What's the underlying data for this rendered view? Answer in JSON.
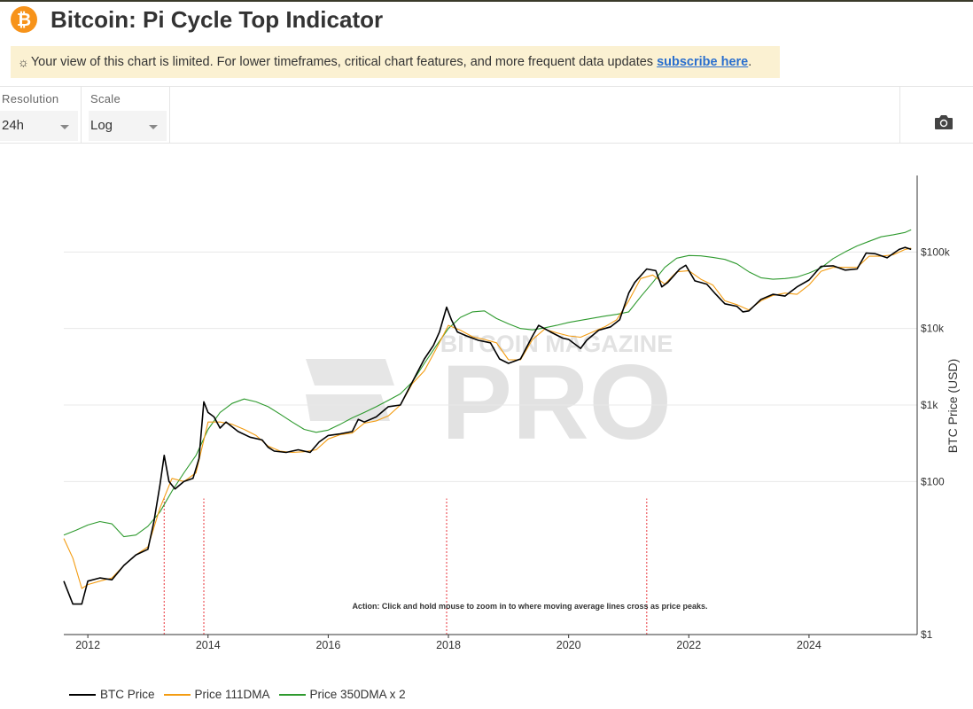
{
  "header": {
    "title": "Bitcoin: Pi Cycle Top Indicator",
    "logo_glyph": "₿"
  },
  "notice": {
    "text": "Your view of this chart is limited. For lower timeframes, critical chart features, and more frequent data updates ",
    "link": "subscribe here",
    "end": "."
  },
  "controls": {
    "resolution": {
      "label": "Resolution",
      "value": "24h"
    },
    "scale": {
      "label": "Scale",
      "value": "Log"
    }
  },
  "colors": {
    "btc": "#000000",
    "dma111": "#f39c12",
    "dma350x2": "#2e9a2e",
    "crossover": "#e8343a",
    "grid": "#e8e8e8"
  },
  "chart_data": {
    "type": "line",
    "title": "Bitcoin: Pi Cycle Top Indicator",
    "ylabel": "BTC Price (USD)",
    "yscale": "log",
    "ylim": [
      1,
      1000000
    ],
    "y_ticks": [
      {
        "value": 1,
        "label": "$1"
      },
      {
        "value": 100,
        "label": "$100"
      },
      {
        "value": 1000,
        "label": "$1k"
      },
      {
        "value": 10000,
        "label": "$10k"
      },
      {
        "value": 100000,
        "label": "$100k"
      }
    ],
    "xlim": [
      2011.6,
      2025.8
    ],
    "x_ticks": [
      {
        "value": 2012,
        "label": "2012"
      },
      {
        "value": 2014,
        "label": "2014"
      },
      {
        "value": 2016,
        "label": "2016"
      },
      {
        "value": 2018,
        "label": "2018"
      },
      {
        "value": 2020,
        "label": "2020"
      },
      {
        "value": 2022,
        "label": "2022"
      },
      {
        "value": 2024,
        "label": "2024"
      }
    ],
    "crossovers": [
      2013.27,
      2013.93,
      2017.97,
      2021.3
    ],
    "annotation": "Action: Click and hold mouse to zoom in to where moving average lines cross as price peaks.",
    "watermark": {
      "top": "BITCOIN MAGAZINE",
      "main": "PRO"
    },
    "series": [
      {
        "name": "BTC Price",
        "key": "btc",
        "x": [
          2011.6,
          2011.75,
          2011.9,
          2012.0,
          2012.2,
          2012.4,
          2012.6,
          2012.8,
          2013.0,
          2013.1,
          2013.2,
          2013.27,
          2013.35,
          2013.45,
          2013.6,
          2013.75,
          2013.85,
          2013.93,
          2014.0,
          2014.1,
          2014.2,
          2014.3,
          2014.5,
          2014.7,
          2014.9,
          2015.0,
          2015.1,
          2015.3,
          2015.5,
          2015.7,
          2015.85,
          2016.0,
          2016.2,
          2016.4,
          2016.5,
          2016.6,
          2016.8,
          2017.0,
          2017.2,
          2017.4,
          2017.6,
          2017.75,
          2017.85,
          2017.97,
          2018.05,
          2018.15,
          2018.3,
          2018.5,
          2018.7,
          2018.85,
          2019.0,
          2019.2,
          2019.4,
          2019.5,
          2019.7,
          2019.9,
          2020.0,
          2020.2,
          2020.3,
          2020.5,
          2020.7,
          2020.85,
          2021.0,
          2021.1,
          2021.3,
          2021.45,
          2021.55,
          2021.65,
          2021.85,
          2021.95,
          2022.1,
          2022.3,
          2022.45,
          2022.6,
          2022.8,
          2022.9,
          2023.0,
          2023.2,
          2023.4,
          2023.6,
          2023.8,
          2024.0,
          2024.2,
          2024.4,
          2024.6,
          2024.8,
          2024.95,
          2025.1,
          2025.3,
          2025.5,
          2025.6,
          2025.7
        ],
        "y": [
          5,
          2.5,
          2.5,
          5,
          5.5,
          5.2,
          8,
          11,
          13,
          30,
          90,
          220,
          100,
          80,
          100,
          110,
          200,
          1100,
          800,
          700,
          500,
          600,
          450,
          380,
          350,
          280,
          250,
          240,
          260,
          240,
          330,
          400,
          420,
          450,
          650,
          600,
          700,
          950,
          1000,
          2000,
          4000,
          6000,
          9000,
          19000,
          13000,
          9000,
          8000,
          7000,
          6500,
          4000,
          3500,
          4000,
          8000,
          11000,
          9000,
          7500,
          7200,
          5500,
          7000,
          9500,
          10500,
          13000,
          29000,
          40000,
          60000,
          57000,
          35000,
          40000,
          60000,
          67000,
          42000,
          38000,
          28000,
          21000,
          19500,
          16500,
          17000,
          24000,
          28000,
          26500,
          35000,
          43000,
          65000,
          66000,
          58000,
          60000,
          97000,
          95000,
          84000,
          108000,
          115000,
          108000
        ]
      },
      {
        "name": "Price 111DMA",
        "key": "dma111",
        "x": [
          2011.6,
          2011.75,
          2011.9,
          2012.0,
          2012.2,
          2012.4,
          2012.6,
          2012.8,
          2013.0,
          2013.2,
          2013.4,
          2013.6,
          2013.8,
          2014.0,
          2014.2,
          2014.4,
          2014.6,
          2014.8,
          2015.0,
          2015.2,
          2015.4,
          2015.6,
          2015.8,
          2016.0,
          2016.2,
          2016.4,
          2016.6,
          2016.8,
          2017.0,
          2017.2,
          2017.4,
          2017.6,
          2017.8,
          2018.0,
          2018.2,
          2018.4,
          2018.6,
          2018.8,
          2019.0,
          2019.2,
          2019.4,
          2019.6,
          2019.8,
          2020.0,
          2020.2,
          2020.4,
          2020.6,
          2020.8,
          2021.0,
          2021.2,
          2021.4,
          2021.6,
          2021.8,
          2022.0,
          2022.2,
          2022.4,
          2022.6,
          2022.8,
          2023.0,
          2023.2,
          2023.4,
          2023.6,
          2023.8,
          2024.0,
          2024.2,
          2024.4,
          2024.6,
          2024.8,
          2025.0,
          2025.2,
          2025.4,
          2025.6,
          2025.7
        ],
        "y": [
          18,
          10,
          4,
          4.5,
          5,
          5.5,
          8,
          11,
          14,
          45,
          110,
          100,
          130,
          600,
          600,
          560,
          480,
          400,
          290,
          250,
          240,
          245,
          260,
          360,
          410,
          430,
          580,
          620,
          720,
          1000,
          1900,
          2800,
          5500,
          11000,
          9500,
          7800,
          7200,
          6500,
          3900,
          3900,
          7200,
          9800,
          8800,
          8000,
          7700,
          9000,
          10500,
          13000,
          23000,
          45000,
          50000,
          38000,
          55000,
          57000,
          44000,
          37000,
          23000,
          20500,
          17500,
          23000,
          27000,
          29000,
          28000,
          37000,
          56000,
          63000,
          63000,
          63000,
          88000,
          88000,
          92000,
          108000,
          112000
        ]
      },
      {
        "name": "Price 350DMA x 2",
        "key": "dma350x2",
        "x": [
          2011.6,
          2011.8,
          2012.0,
          2012.2,
          2012.4,
          2012.6,
          2012.8,
          2013.0,
          2013.2,
          2013.4,
          2013.6,
          2013.8,
          2014.0,
          2014.2,
          2014.4,
          2014.6,
          2014.8,
          2015.0,
          2015.2,
          2015.4,
          2015.6,
          2015.8,
          2016.0,
          2016.2,
          2016.4,
          2016.6,
          2016.8,
          2017.0,
          2017.2,
          2017.4,
          2017.6,
          2017.8,
          2018.0,
          2018.2,
          2018.4,
          2018.6,
          2018.8,
          2019.0,
          2019.2,
          2019.4,
          2019.6,
          2019.8,
          2020.0,
          2020.2,
          2020.4,
          2020.6,
          2020.8,
          2021.0,
          2021.2,
          2021.4,
          2021.6,
          2021.8,
          2022.0,
          2022.2,
          2022.4,
          2022.6,
          2022.8,
          2023.0,
          2023.2,
          2023.4,
          2023.6,
          2023.8,
          2024.0,
          2024.2,
          2024.4,
          2024.6,
          2024.8,
          2025.0,
          2025.2,
          2025.4,
          2025.6,
          2025.7
        ],
        "y": [
          20,
          23,
          27,
          30,
          28,
          19,
          20,
          26,
          40,
          75,
          130,
          220,
          480,
          800,
          1050,
          1200,
          1100,
          950,
          760,
          600,
          480,
          440,
          470,
          560,
          680,
          800,
          950,
          1150,
          1400,
          2000,
          3500,
          6000,
          10000,
          14000,
          16500,
          17000,
          13500,
          11500,
          10000,
          9600,
          10200,
          11000,
          12000,
          12800,
          13600,
          14500,
          15300,
          16500,
          26000,
          40000,
          63000,
          83000,
          90000,
          89000,
          85000,
          80000,
          70000,
          55000,
          46000,
          44000,
          45000,
          47000,
          53000,
          62000,
          82000,
          100000,
          120000,
          138000,
          158000,
          168000,
          180000,
          195000
        ]
      }
    ]
  }
}
